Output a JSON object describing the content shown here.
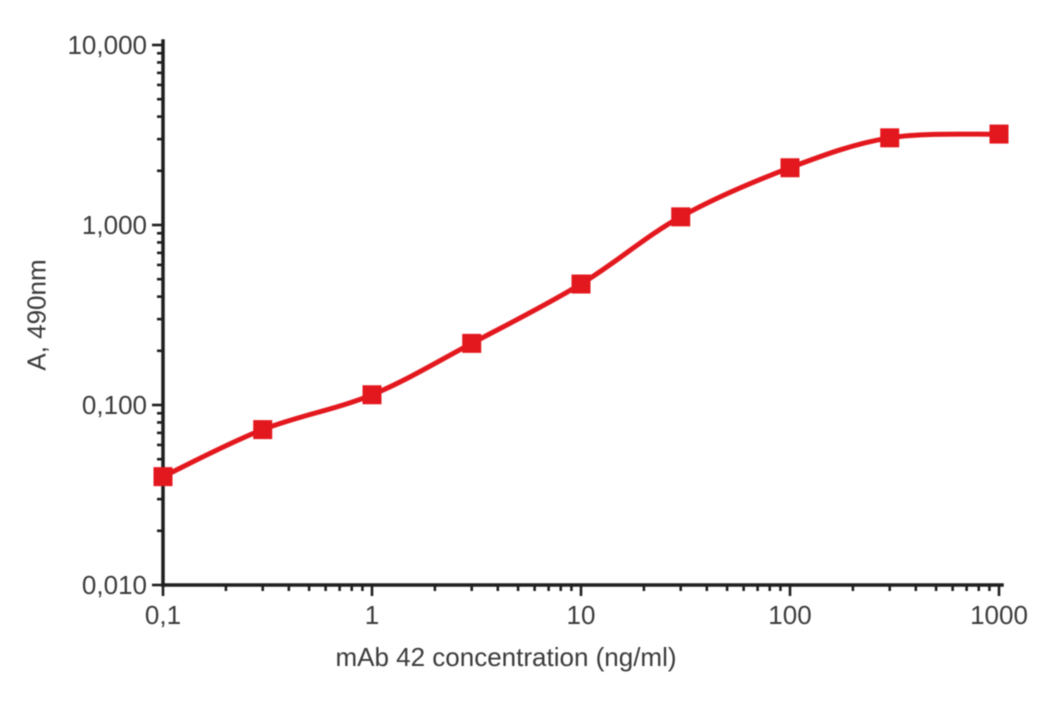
{
  "chart_data": {
    "type": "line",
    "scale": "log-log",
    "title": "",
    "xlabel": "mAb 42 concentration (ng/ml)",
    "ylabel": "A, 490nm",
    "x": [
      0.1,
      0.3,
      1,
      3,
      10,
      30,
      100,
      300,
      1000
    ],
    "y": [
      0.04,
      0.073,
      0.114,
      0.22,
      0.47,
      1.11,
      2.08,
      3.05,
      3.2
    ],
    "xlim": [
      0.1,
      1000
    ],
    "ylim": [
      0.01,
      10
    ],
    "x_ticks": {
      "values": [
        0.1,
        1,
        10,
        100,
        1000
      ],
      "labels": [
        "0,1",
        "1",
        "10",
        "100",
        "1000"
      ]
    },
    "y_ticks": {
      "values": [
        0.01,
        0.1,
        1,
        10
      ],
      "labels": [
        "0,010",
        "0,100",
        "1,000",
        "10,000"
      ]
    },
    "grid": false,
    "legend": false,
    "marker": "square",
    "line_color": "#e3181e",
    "marker_color": "#e3181e",
    "axis_color": "#1f1f1f",
    "label_color": "#3b3b3b"
  }
}
